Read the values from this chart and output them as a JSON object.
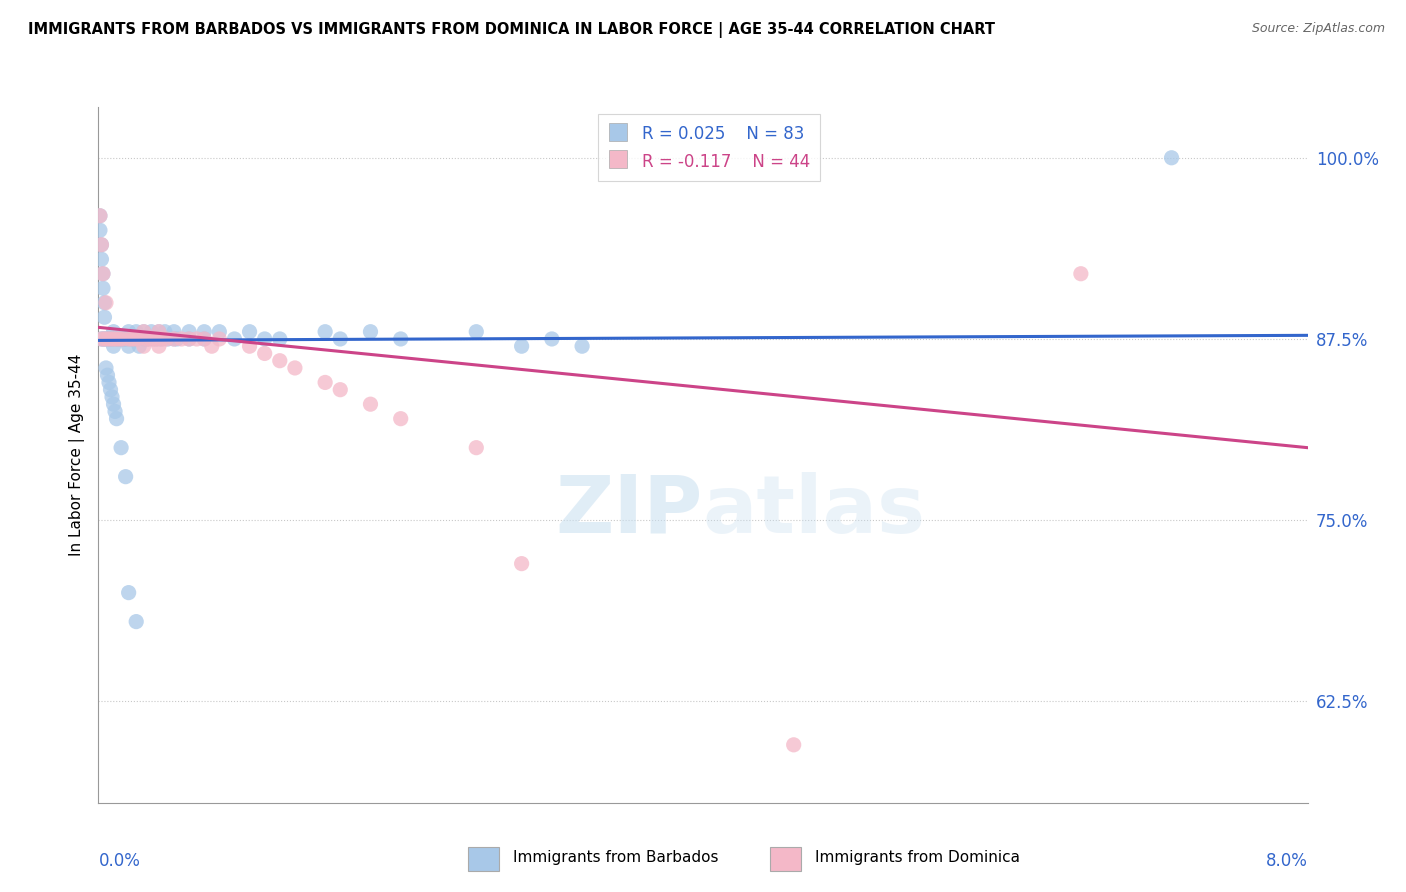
{
  "title": "IMMIGRANTS FROM BARBADOS VS IMMIGRANTS FROM DOMINICA IN LABOR FORCE | AGE 35-44 CORRELATION CHART",
  "source": "Source: ZipAtlas.com",
  "ylabel": "In Labor Force | Age 35-44",
  "xmin": 0.0,
  "xmax": 0.08,
  "ymin": 0.555,
  "ymax": 1.035,
  "watermark": "ZIPatlas",
  "color_blue": "#a8c8e8",
  "color_pink": "#f4b8c8",
  "line_color_blue": "#3366cc",
  "line_color_pink": "#cc4488",
  "blue_x": [
    0.0002,
    0.0003,
    0.0004,
    0.0005,
    0.0006,
    0.0007,
    0.0008,
    0.0009,
    0.001,
    0.001,
    0.001,
    0.0012,
    0.0013,
    0.0014,
    0.0015,
    0.0016,
    0.0017,
    0.0018,
    0.002,
    0.002,
    0.002,
    0.0022,
    0.0023,
    0.0024,
    0.0025,
    0.0026,
    0.0027,
    0.003,
    0.003,
    0.0032,
    0.0033,
    0.0035,
    0.0036,
    0.0038,
    0.004,
    0.004,
    0.0042,
    0.0044,
    0.0046,
    0.005,
    0.005,
    0.0052,
    0.006,
    0.006,
    0.007,
    0.007,
    0.008,
    0.009,
    0.01,
    0.011,
    0.012,
    0.015,
    0.016,
    0.018,
    0.02,
    0.025,
    0.028,
    0.03,
    0.032,
    0.0001,
    0.0001,
    0.0002,
    0.0002,
    0.0003,
    0.0003,
    0.0004,
    0.0004,
    0.0005,
    0.0006,
    0.0007,
    0.0008,
    0.0009,
    0.001,
    0.0011,
    0.0012,
    0.0015,
    0.0018,
    0.002,
    0.0025,
    0.071
  ],
  "blue_y": [
    0.875,
    0.875,
    0.875,
    0.875,
    0.875,
    0.875,
    0.875,
    0.875,
    0.875,
    0.88,
    0.87,
    0.875,
    0.875,
    0.875,
    0.875,
    0.875,
    0.875,
    0.875,
    0.88,
    0.875,
    0.87,
    0.875,
    0.875,
    0.875,
    0.88,
    0.875,
    0.87,
    0.88,
    0.875,
    0.875,
    0.875,
    0.88,
    0.875,
    0.875,
    0.88,
    0.875,
    0.875,
    0.88,
    0.875,
    0.88,
    0.875,
    0.875,
    0.88,
    0.875,
    0.88,
    0.875,
    0.88,
    0.875,
    0.88,
    0.875,
    0.875,
    0.88,
    0.875,
    0.88,
    0.875,
    0.88,
    0.87,
    0.875,
    0.87,
    0.96,
    0.95,
    0.94,
    0.93,
    0.92,
    0.91,
    0.9,
    0.89,
    0.855,
    0.85,
    0.845,
    0.84,
    0.835,
    0.83,
    0.825,
    0.82,
    0.8,
    0.78,
    0.7,
    0.68,
    1.0
  ],
  "pink_x": [
    0.0002,
    0.0004,
    0.0006,
    0.0008,
    0.001,
    0.0012,
    0.0014,
    0.0016,
    0.002,
    0.0022,
    0.0024,
    0.0026,
    0.003,
    0.003,
    0.0032,
    0.0035,
    0.0038,
    0.004,
    0.004,
    0.0042,
    0.0045,
    0.005,
    0.0055,
    0.006,
    0.0065,
    0.007,
    0.0075,
    0.008,
    0.01,
    0.011,
    0.012,
    0.013,
    0.015,
    0.016,
    0.018,
    0.02,
    0.0001,
    0.0002,
    0.0003,
    0.0005,
    0.025,
    0.028,
    0.046,
    0.065
  ],
  "pink_y": [
    0.875,
    0.875,
    0.875,
    0.875,
    0.875,
    0.875,
    0.875,
    0.875,
    0.875,
    0.875,
    0.875,
    0.875,
    0.88,
    0.87,
    0.875,
    0.875,
    0.875,
    0.88,
    0.87,
    0.875,
    0.875,
    0.875,
    0.875,
    0.875,
    0.875,
    0.875,
    0.87,
    0.875,
    0.87,
    0.865,
    0.86,
    0.855,
    0.845,
    0.84,
    0.83,
    0.82,
    0.96,
    0.94,
    0.92,
    0.9,
    0.8,
    0.72,
    0.595,
    0.92
  ],
  "blue_line_x": [
    0.0,
    0.08
  ],
  "blue_line_y": [
    0.874,
    0.8775
  ],
  "pink_line_x": [
    0.0,
    0.08
  ],
  "pink_line_y": [
    0.883,
    0.8
  ]
}
